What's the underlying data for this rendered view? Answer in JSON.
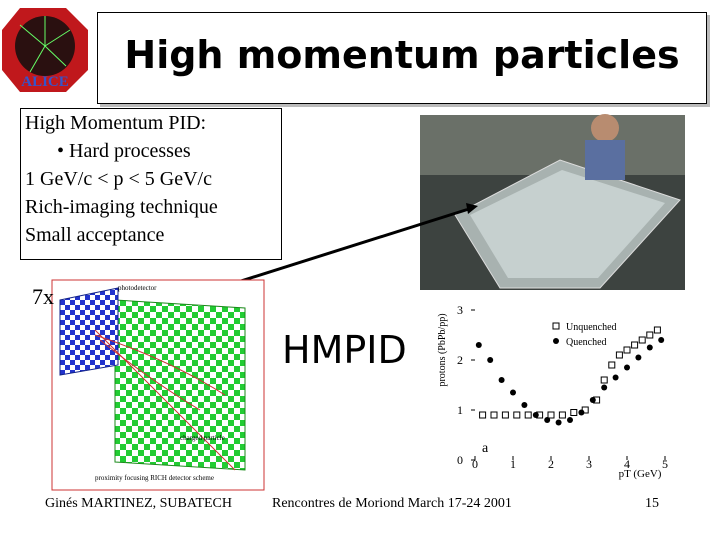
{
  "title": "High momentum particles",
  "logo_text": "ALICE",
  "textbox": [
    "High Momentum PID:",
    "• Hard processes",
    "1 GeV/c < p < 5 GeV/c",
    "Rich-imaging technique",
    "Small acceptance"
  ],
  "magnification": "7x",
  "detector_label": "HMPID",
  "diagram": {
    "labels": [
      "photodetector",
      "charged particle",
      "proximity focusing RICH detector scheme"
    ]
  },
  "plot": {
    "type": "scatter",
    "ylabel": "protons (PbPb/pp)",
    "xlabel": "pT (GeV)",
    "annotation": "a",
    "xlim": [
      0,
      5
    ],
    "ylim": [
      0,
      3
    ],
    "xticks": [
      0,
      1,
      2,
      3,
      4,
      5
    ],
    "yticks": [
      0,
      1,
      2,
      3
    ],
    "series": [
      {
        "name": "Unquenched",
        "color": "#000000",
        "marker": "square",
        "x": [
          0.2,
          0.5,
          0.8,
          1.1,
          1.4,
          1.7,
          2.0,
          2.3,
          2.6,
          2.9,
          3.2,
          3.4,
          3.6,
          3.8,
          4.0,
          4.2,
          4.4,
          4.6,
          4.8
        ],
        "values": [
          0.9,
          0.9,
          0.9,
          0.9,
          0.9,
          0.9,
          0.9,
          0.9,
          0.95,
          1.0,
          1.2,
          1.6,
          1.9,
          2.1,
          2.2,
          2.3,
          2.4,
          2.5,
          2.6
        ]
      },
      {
        "name": "Quenched",
        "color": "#000000",
        "marker": "circle",
        "x": [
          0.1,
          0.4,
          0.7,
          1.0,
          1.3,
          1.6,
          1.9,
          2.2,
          2.5,
          2.8,
          3.1,
          3.4,
          3.7,
          4.0,
          4.3,
          4.6,
          4.9
        ],
        "values": [
          2.3,
          2.0,
          1.6,
          1.35,
          1.1,
          0.9,
          0.8,
          0.75,
          0.8,
          0.95,
          1.2,
          1.45,
          1.65,
          1.85,
          2.05,
          2.25,
          2.4
        ]
      }
    ]
  },
  "footer": {
    "author": "Ginés MARTINEZ, SUBATECH",
    "event": "Rencontres de Moriond March 17-24 2001",
    "page": "15"
  }
}
